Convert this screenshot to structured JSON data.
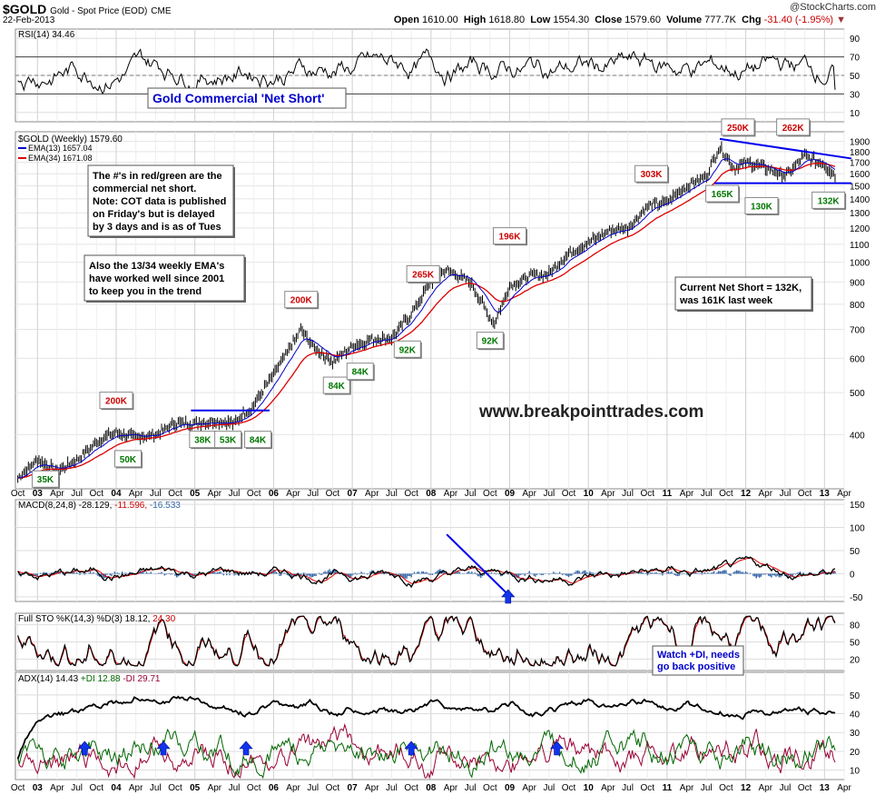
{
  "header": {
    "symbol": "$GOLD",
    "name": "Gold - Spot Price (EOD)",
    "exchange": "CME",
    "date": "22-Feb-2013",
    "credit": "@StockCharts.com",
    "open_label": "Open",
    "open": "1610.00",
    "high_label": "High",
    "high": "1618.80",
    "low_label": "Low",
    "low": "1554.30",
    "close_label": "Close",
    "close": "1579.60",
    "volume_label": "Volume",
    "volume": "777.7K",
    "chg_label": "Chg",
    "chg": "-31.40 (-1.95%)",
    "chg_color": "#cc0000"
  },
  "colors": {
    "price": "#000000",
    "ema13": "#0000cc",
    "ema34": "#dd0000",
    "trend": "#0000ee",
    "green_label": "#007700",
    "red_label": "#cc0000",
    "annot_blue": "#0000cc",
    "fill_green": "#557755",
    "adx": "#000000",
    "pdi": "#006600",
    "mdi": "#990033"
  },
  "chart_data": [
    {
      "panel": "rsi",
      "type": "line",
      "title": "RSI(14) 34.46",
      "ylim": [
        0,
        100
      ],
      "yticks": [
        10,
        30,
        50,
        70,
        90
      ],
      "levels": [
        30,
        70
      ],
      "last": 34.46,
      "annotation": "Gold Commercial 'Net Short'"
    },
    {
      "panel": "price",
      "type": "line",
      "scale": "log",
      "title": "$GOLD (Weekly) 1579.60",
      "legend": [
        "EMA(13) 1657.04",
        "EMA(34) 1671.08"
      ],
      "yticks": [
        400,
        500,
        600,
        700,
        800,
        900,
        1000,
        1100,
        1200,
        1300,
        1400,
        1500,
        1600,
        1700,
        1800,
        1900
      ],
      "x_labels": [
        "Oct",
        "03",
        "Apr",
        "Jul",
        "Oct",
        "04",
        "Apr",
        "Jul",
        "Oct",
        "05",
        "Apr",
        "Jul",
        "Oct",
        "06",
        "Apr",
        "Jul",
        "Oct",
        "07",
        "Apr",
        "Jul",
        "Oct",
        "08",
        "Apr",
        "Jul",
        "Oct",
        "09",
        "Apr",
        "Jul",
        "Oct",
        "10",
        "Apr",
        "Jul",
        "Oct",
        "11",
        "Apr",
        "Jul",
        "Oct",
        "12",
        "Apr",
        "Jul",
        "Oct",
        "13",
        "Apr"
      ],
      "series": [
        {
          "name": "$GOLD",
          "x": [
            2002.75,
            2003.0,
            2003.25,
            2003.5,
            2003.75,
            2004.0,
            2004.25,
            2004.5,
            2004.75,
            2005.0,
            2005.25,
            2005.5,
            2005.75,
            2006.0,
            2006.35,
            2006.5,
            2006.75,
            2007.0,
            2007.25,
            2007.5,
            2007.75,
            2008.0,
            2008.2,
            2008.5,
            2008.8,
            2009.0,
            2009.25,
            2009.5,
            2009.75,
            2010.0,
            2010.25,
            2010.5,
            2010.75,
            2011.0,
            2011.25,
            2011.5,
            2011.67,
            2011.85,
            2012.0,
            2012.25,
            2012.5,
            2012.75,
            2013.0,
            2013.14
          ],
          "values": [
            318,
            350,
            330,
            350,
            385,
            405,
            395,
            400,
            425,
            425,
            430,
            425,
            470,
            550,
            700,
            640,
            590,
            640,
            665,
            670,
            760,
            900,
            960,
            900,
            720,
            880,
            930,
            940,
            1050,
            1110,
            1180,
            1200,
            1350,
            1380,
            1500,
            1580,
            1850,
            1650,
            1700,
            1650,
            1580,
            1760,
            1680,
            1580
          ]
        },
        {
          "name": "EMA(13)",
          "values": [
            1657.04
          ]
        },
        {
          "name": "EMA(34)",
          "values": [
            1671.08
          ]
        }
      ],
      "trendlines": [
        "resistance",
        "support-1520",
        "2005-base"
      ],
      "annotations": [
        {
          "text": "200K",
          "color": "red",
          "x": 2004.0,
          "y": 480
        },
        {
          "text": "35K",
          "color": "green",
          "x": 2003.1,
          "y": 316
        },
        {
          "text": "50K",
          "color": "green",
          "x": 2004.15,
          "y": 352
        },
        {
          "text": "38K",
          "color": "green",
          "x": 2005.1,
          "y": 390
        },
        {
          "text": "53K",
          "color": "green",
          "x": 2005.42,
          "y": 390
        },
        {
          "text": "84K",
          "color": "green",
          "x": 2005.8,
          "y": 390
        },
        {
          "text": "200K",
          "color": "red",
          "x": 2006.35,
          "y": 820
        },
        {
          "text": "84K",
          "color": "green",
          "x": 2006.8,
          "y": 520
        },
        {
          "text": "84K",
          "color": "green",
          "x": 2007.1,
          "y": 560
        },
        {
          "text": "92K",
          "color": "green",
          "x": 2007.7,
          "y": 630
        },
        {
          "text": "265K",
          "color": "red",
          "x": 2007.9,
          "y": 940
        },
        {
          "text": "92K",
          "color": "green",
          "x": 2008.75,
          "y": 660
        },
        {
          "text": "196K",
          "color": "red",
          "x": 2009.0,
          "y": 1150
        },
        {
          "text": "303K",
          "color": "red",
          "x": 2010.8,
          "y": 1600
        },
        {
          "text": "165K",
          "color": "green",
          "x": 2011.7,
          "y": 1440
        },
        {
          "text": "250K",
          "color": "red",
          "x": 2011.9,
          "y": 2050
        },
        {
          "text": "130K",
          "color": "green",
          "x": 2012.2,
          "y": 1350
        },
        {
          "text": "262K",
          "color": "red",
          "x": 2012.6,
          "y": 2050
        },
        {
          "text": "132K",
          "color": "green",
          "x": 2013.05,
          "y": 1390
        }
      ],
      "notes": [
        "The #'s in red/green are the",
        "commercial net short.",
        "Note: COT data is published",
        "on Friday's but is delayed",
        "by 3 days and is as of Tues"
      ],
      "notes2": [
        "Also the 13/34 weekly EMA's",
        "have worked well since 2001",
        "to keep you in the trend"
      ],
      "current": [
        "Current Net Short = 132K,",
        "was 161K last week"
      ],
      "watermark": "www.breakpointtrades.com"
    },
    {
      "panel": "macd",
      "type": "line",
      "title": "MACD(8,24,8) -28.129, -11.596, -16.533",
      "title_parts": [
        "MACD(8,24,8) -28.129,",
        " -11.596,",
        " -16.533"
      ],
      "ylim": [
        -60,
        160
      ],
      "yticks": [
        -50,
        0,
        50,
        100,
        150
      ]
    },
    {
      "panel": "sto",
      "type": "line",
      "title": "Full STO %K(14,3) %D(3) 18.12, 24.30",
      "title_parts": [
        "Full STO %K(14,3) %D(3) 18.12,",
        " 24.30"
      ],
      "ylim": [
        0,
        100
      ],
      "yticks": [
        20,
        50,
        80
      ],
      "annotation": [
        "Watch +DI, needs",
        "go back positive"
      ]
    },
    {
      "panel": "adx",
      "type": "line",
      "title": "ADX(14) 14.43 +DI 12.88 -DI 29.71",
      "title_parts": [
        "ADX(14) 14.43",
        " +DI 12.88",
        " -DI 29.71"
      ],
      "ylim": [
        5,
        62
      ],
      "yticks": [
        10,
        20,
        30,
        40,
        50
      ]
    }
  ]
}
